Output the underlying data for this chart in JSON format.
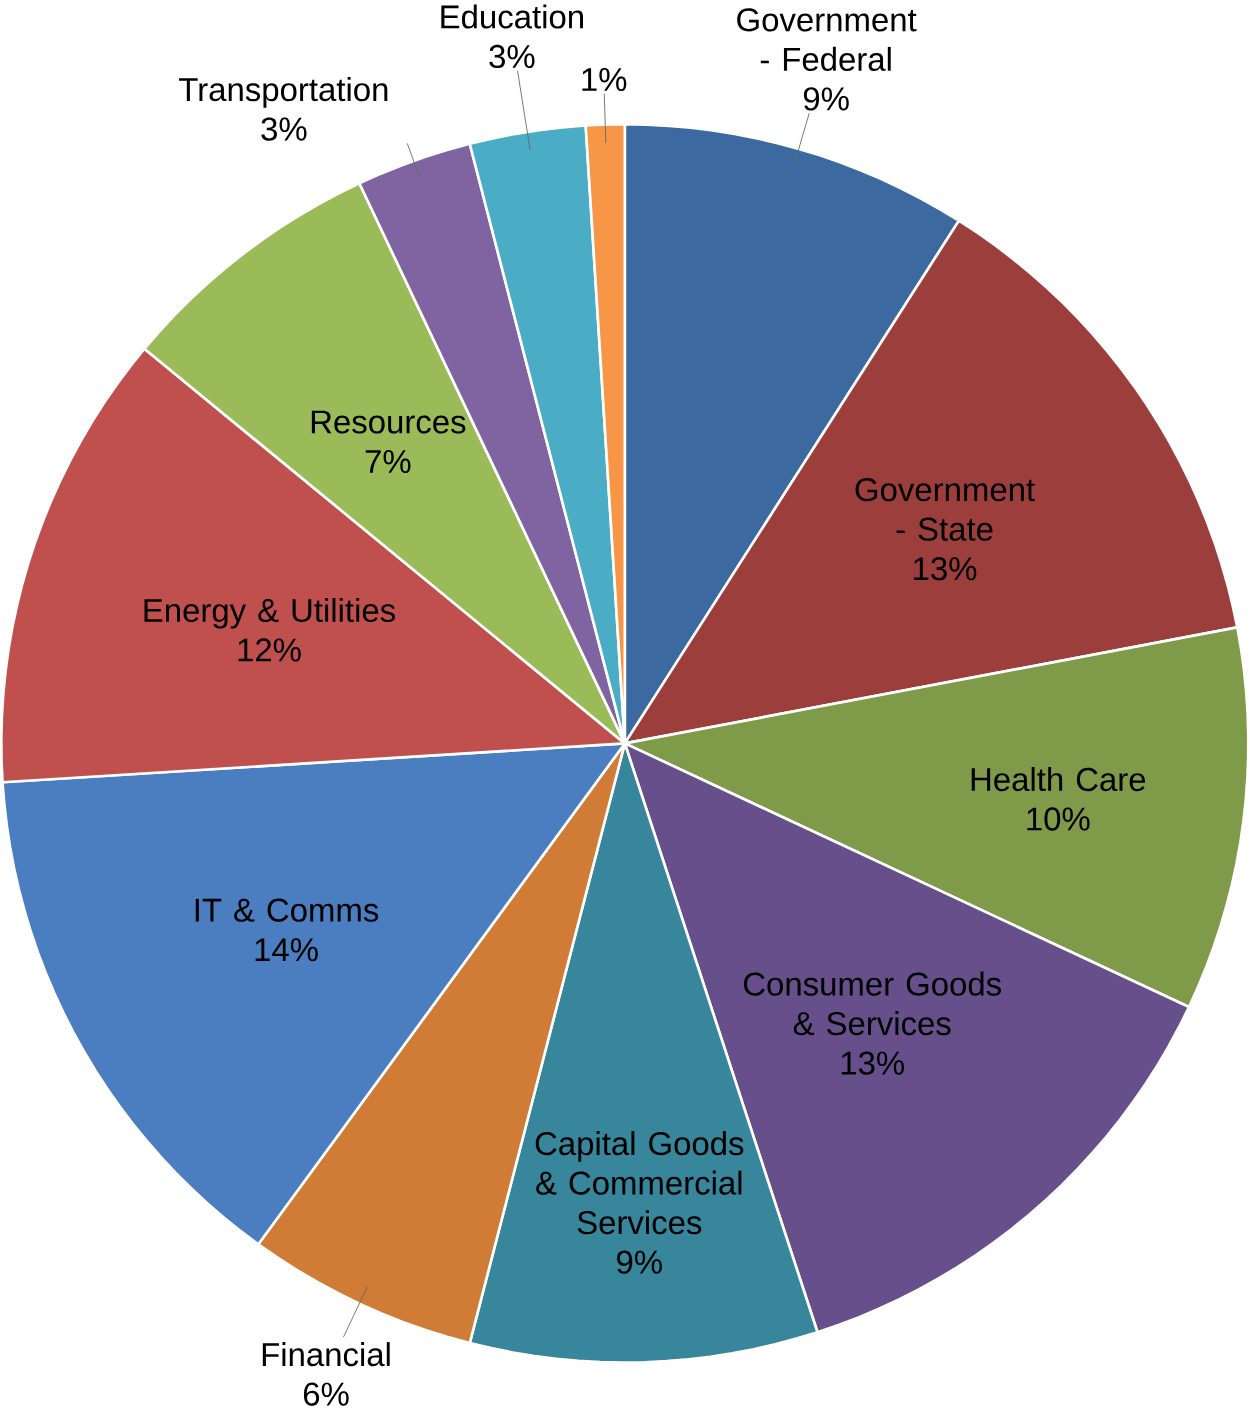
{
  "chart_data": {
    "type": "pie",
    "categories": [
      "Government - Federal",
      "Government - State",
      "Health Care",
      "Consumer Goods & Services",
      "Capital Goods & Commercial Services",
      "Financial",
      "IT & Comms",
      "Energy & Utilities",
      "Resources",
      "Transportation",
      "Education",
      null
    ],
    "values": [
      9,
      13,
      10,
      13,
      9,
      6,
      14,
      12,
      7,
      3,
      3,
      1
    ],
    "value_labels": [
      "9%",
      "13%",
      "10%",
      "13%",
      "9%",
      "6%",
      "14%",
      "12%",
      "7%",
      "3%",
      "3%",
      "1%"
    ],
    "colors": [
      "#3c6aa0",
      "#9c3f3c",
      "#7f9a48",
      "#664f8a",
      "#37869b",
      "#d07b36",
      "#4a7ec0",
      "#c0504d",
      "#9bbb59",
      "#8064a2",
      "#4bacc6",
      "#f79646"
    ]
  }
}
